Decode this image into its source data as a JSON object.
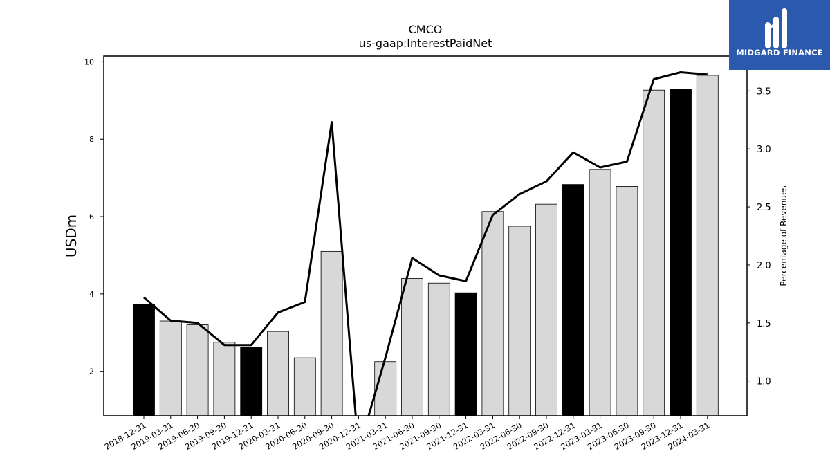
{
  "chart_data": {
    "type": "bar",
    "title": "CMCO",
    "subtitle": "us-gaap:InterestPaidNet",
    "ylabel": "USDm",
    "y2label": "Percentage of Revenues",
    "ylim": [
      0.85,
      10.15
    ],
    "y2lim": [
      0.7,
      3.8
    ],
    "yticks": [
      2,
      4,
      6,
      8,
      10
    ],
    "y2ticks": [
      "1.0",
      "1.5",
      "2.0",
      "2.5",
      "3.0",
      "3.5"
    ],
    "categories": [
      "2018-12-31",
      "2019-03-31",
      "2019-06-30",
      "2019-09-30",
      "2019-12-31",
      "2020-03-31",
      "2020-06-30",
      "2020-09-30",
      "2020-12-31",
      "2021-03-31",
      "2021-06-30",
      "2021-09-30",
      "2021-12-31",
      "2022-03-31",
      "2022-06-30",
      "2022-09-30",
      "2022-12-31",
      "2023-03-31",
      "2023-06-30",
      "2023-09-30",
      "2023-12-31",
      "2024-03-31"
    ],
    "series": [
      {
        "kind": "bar",
        "values": [
          3.73,
          3.3,
          3.2,
          2.75,
          2.63,
          3.03,
          2.35,
          5.1,
          null,
          2.25,
          4.4,
          4.28,
          4.03,
          6.13,
          5.75,
          6.32,
          6.83,
          7.22,
          6.78,
          9.27,
          9.3,
          9.65
        ],
        "annual": [
          true,
          false,
          false,
          false,
          true,
          false,
          false,
          false,
          true,
          false,
          false,
          false,
          true,
          false,
          false,
          false,
          true,
          false,
          false,
          false,
          true,
          false
        ]
      },
      {
        "kind": "line",
        "axis": "right",
        "values": [
          1.72,
          1.52,
          1.5,
          1.31,
          1.31,
          1.59,
          1.68,
          3.23,
          0.4,
          1.2,
          2.06,
          1.91,
          1.86,
          2.43,
          2.61,
          2.72,
          2.97,
          2.84,
          2.89,
          3.6,
          3.66,
          3.64
        ]
      }
    ],
    "colors": {
      "annual_bar": "#000000",
      "quarter_bar": "#d8d8d8",
      "bar_edge": "#000000",
      "line": "#000000"
    },
    "grid": false
  },
  "logo": {
    "text": "MIDGARD FINANCE",
    "bg": "#2b59ae"
  }
}
